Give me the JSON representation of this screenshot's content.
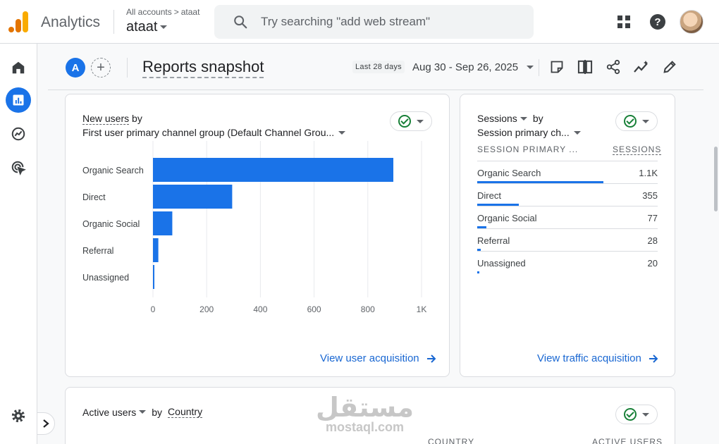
{
  "app": {
    "name": "Analytics",
    "accounts_crumb": "All accounts",
    "property_crumb": "ataat",
    "account_name": "ataat"
  },
  "search": {
    "placeholder": "Try searching \"add web stream\""
  },
  "header": {
    "badge_letter": "A",
    "add_icon_glyph": "+",
    "title": "Reports snapshot",
    "date_label": "Last 28 days",
    "date_range": "Aug 30 - Sep 26, 2025"
  },
  "icons": {
    "top": [
      "apps-grid-icon",
      "help-icon"
    ],
    "rail": [
      "home-icon",
      "reports-icon",
      "explore-icon",
      "advertising-icon",
      "settings-icon"
    ],
    "header_tools": [
      "annotation-icon",
      "compare-icon",
      "share-icon",
      "insights-icon",
      "edit-icon"
    ]
  },
  "colors": {
    "accent": "#1a73e8",
    "link": "#1967d2",
    "check": "#188038"
  },
  "new_users_card": {
    "metric": "New users",
    "by": "by",
    "dimension": "First user primary channel group (Default Channel Grou...",
    "link": "View user acquisition",
    "chart_data": {
      "type": "bar",
      "orientation": "horizontal",
      "categories": [
        "Organic Search",
        "Direct",
        "Organic Social",
        "Referral",
        "Unassigned"
      ],
      "values": [
        895,
        295,
        72,
        20,
        5
      ],
      "xlim": [
        0,
        1000
      ],
      "xticks": [
        "0",
        "200",
        "400",
        "600",
        "800",
        "1K"
      ],
      "grid": true
    }
  },
  "sessions_card": {
    "metric": "Sessions",
    "by": "by",
    "dimension": "Session primary ch...",
    "col_dim": "SESSION PRIMARY ...",
    "col_metric": "SESSIONS",
    "rows": [
      {
        "label": "Organic Search",
        "value": "1.1K",
        "fraction": 0.7
      },
      {
        "label": "Direct",
        "value": "355",
        "fraction": 0.23
      },
      {
        "label": "Organic Social",
        "value": "77",
        "fraction": 0.05
      },
      {
        "label": "Referral",
        "value": "28",
        "fraction": 0.02
      },
      {
        "label": "Unassigned",
        "value": "20",
        "fraction": 0.013
      }
    ],
    "link": "View traffic acquisition"
  },
  "active_users_card": {
    "metric": "Active users",
    "by": "by",
    "dimension": "Country",
    "col_dim": "COUNTRY",
    "col_metric": "ACTIVE USERS"
  },
  "watermark": {
    "arabic": "مستقل",
    "latin": "mostaql.com"
  }
}
